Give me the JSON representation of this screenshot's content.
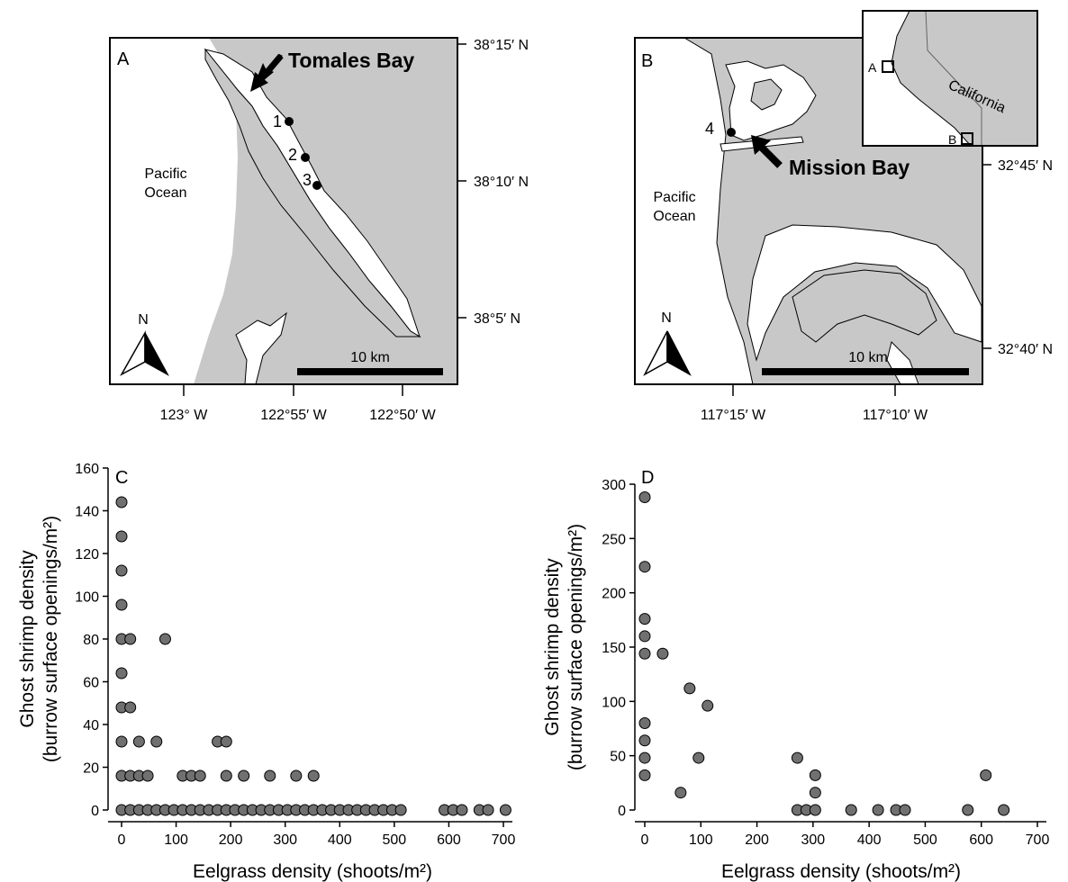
{
  "panel_a": {
    "label": "A",
    "place_label": "Tomales Bay",
    "ocean_line1": "Pacific",
    "ocean_line2": "Ocean",
    "sites": [
      "1",
      "2",
      "3"
    ],
    "north": "N",
    "scale": "10 km",
    "lat_ticks": [
      "38°15′ N",
      "38°10′ N",
      "38°5′ N"
    ],
    "lon_ticks": [
      "123° W",
      "122°55′ W",
      "122°50′ W"
    ],
    "land_color": "#c8c8c8",
    "water_color": "#ffffff"
  },
  "panel_b": {
    "label": "B",
    "place_label": "Mission Bay",
    "ocean_line1": "Pacific",
    "ocean_line2": "Ocean",
    "sites": [
      "4"
    ],
    "north": "N",
    "scale": "10 km",
    "lat_ticks": [
      "32°45′ N",
      "32°40′ N"
    ],
    "lon_ticks": [
      "117°15′ W",
      "117°10′ W"
    ],
    "inset": {
      "state": "California",
      "marker_a": "A",
      "marker_b": "B"
    }
  },
  "chart_data": [
    {
      "panel": "C",
      "type": "scatter",
      "xlabel": "Eelgrass density (shoots/m²)",
      "ylabel_line1": "Ghost shrimp density",
      "ylabel_line2": "(burrow surface openings/m²)",
      "xlim": [
        0,
        700
      ],
      "ylim": [
        0,
        160
      ],
      "xticks": [
        0,
        100,
        200,
        300,
        400,
        500,
        600,
        700
      ],
      "yticks": [
        0,
        20,
        40,
        60,
        80,
        100,
        120,
        140,
        160
      ],
      "marker_color": "#707070",
      "points": [
        [
          0,
          144
        ],
        [
          0,
          128
        ],
        [
          0,
          112
        ],
        [
          0,
          96
        ],
        [
          0,
          80
        ],
        [
          0,
          64
        ],
        [
          0,
          48
        ],
        [
          0,
          32
        ],
        [
          0,
          16
        ],
        [
          0,
          0
        ],
        [
          16,
          80
        ],
        [
          16,
          48
        ],
        [
          16,
          16
        ],
        [
          16,
          0
        ],
        [
          32,
          32
        ],
        [
          32,
          16
        ],
        [
          32,
          0
        ],
        [
          48,
          16
        ],
        [
          48,
          0
        ],
        [
          64,
          32
        ],
        [
          64,
          0
        ],
        [
          80,
          80
        ],
        [
          80,
          0
        ],
        [
          96,
          0
        ],
        [
          112,
          16
        ],
        [
          112,
          0
        ],
        [
          128,
          16
        ],
        [
          128,
          0
        ],
        [
          144,
          16
        ],
        [
          144,
          0
        ],
        [
          160,
          0
        ],
        [
          176,
          32
        ],
        [
          176,
          0
        ],
        [
          192,
          32
        ],
        [
          192,
          16
        ],
        [
          192,
          0
        ],
        [
          208,
          0
        ],
        [
          224,
          16
        ],
        [
          224,
          0
        ],
        [
          240,
          0
        ],
        [
          256,
          0
        ],
        [
          272,
          16
        ],
        [
          272,
          0
        ],
        [
          288,
          0
        ],
        [
          304,
          0
        ],
        [
          320,
          16
        ],
        [
          320,
          0
        ],
        [
          336,
          0
        ],
        [
          352,
          16
        ],
        [
          352,
          0
        ],
        [
          368,
          0
        ],
        [
          384,
          0
        ],
        [
          400,
          0
        ],
        [
          416,
          0
        ],
        [
          432,
          0
        ],
        [
          448,
          0
        ],
        [
          464,
          0
        ],
        [
          480,
          0
        ],
        [
          496,
          0
        ],
        [
          512,
          0
        ],
        [
          592,
          0
        ],
        [
          608,
          0
        ],
        [
          624,
          0
        ],
        [
          656,
          0
        ],
        [
          672,
          0
        ],
        [
          704,
          0
        ]
      ]
    },
    {
      "panel": "D",
      "type": "scatter",
      "xlabel": "Eelgrass density (shoots/m²)",
      "ylabel_line1": "Ghost shrimp density",
      "ylabel_line2": "(burrow surface openings/m²)",
      "xlim": [
        0,
        700
      ],
      "ylim": [
        0,
        300
      ],
      "xticks": [
        0,
        100,
        200,
        300,
        400,
        500,
        600,
        700
      ],
      "yticks": [
        0,
        50,
        100,
        150,
        200,
        250,
        300
      ],
      "marker_color": "#707070",
      "points": [
        [
          0,
          288
        ],
        [
          0,
          224
        ],
        [
          0,
          176
        ],
        [
          0,
          160
        ],
        [
          0,
          144
        ],
        [
          0,
          80
        ],
        [
          0,
          64
        ],
        [
          0,
          48
        ],
        [
          0,
          32
        ],
        [
          32,
          144
        ],
        [
          64,
          16
        ],
        [
          80,
          112
        ],
        [
          96,
          48
        ],
        [
          112,
          96
        ],
        [
          272,
          48
        ],
        [
          272,
          0
        ],
        [
          288,
          0
        ],
        [
          304,
          32
        ],
        [
          304,
          16
        ],
        [
          304,
          0
        ],
        [
          368,
          0
        ],
        [
          416,
          0
        ],
        [
          448,
          0
        ],
        [
          464,
          0
        ],
        [
          576,
          0
        ],
        [
          608,
          32
        ],
        [
          640,
          0
        ]
      ]
    }
  ]
}
